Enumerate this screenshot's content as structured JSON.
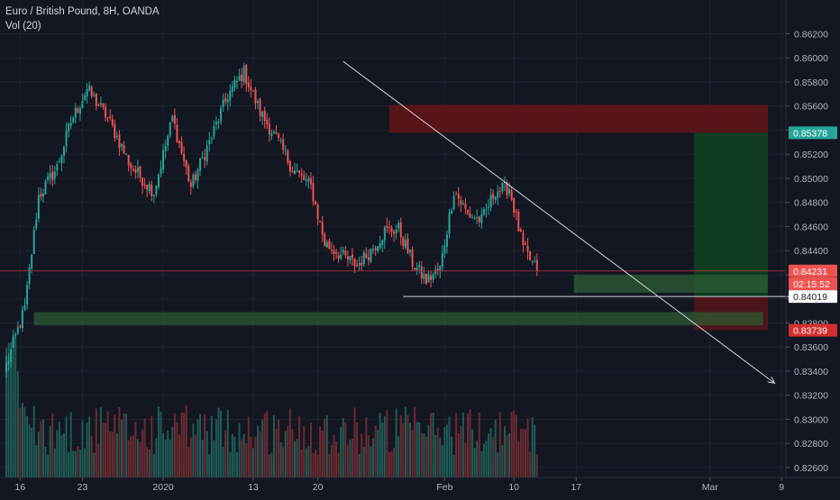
{
  "header": {
    "title": "Euro / British Pound, 8H, OANDA",
    "indicator": "Vol (20)"
  },
  "colors": {
    "background": "#131722",
    "up": "#26a69a",
    "down": "#ef5350",
    "grid": "#1e222d",
    "axis_text": "#b2b5be",
    "stop_zone": "#5b1419",
    "target_zone": "#0f3d22",
    "support_zone": "#2e5e35",
    "trend_line": "#d1d4dc",
    "price_line": "#8f2e33"
  },
  "chart_data": {
    "type": "candlestick",
    "symbol": "EURGBP",
    "interval": "8H",
    "x_tick_labels": [
      "16",
      "23",
      "2020",
      "13",
      "20",
      "Feb",
      "10",
      "17",
      "Mar",
      "9"
    ],
    "y_tick_labels": [
      "0.86200",
      "0.86000",
      "0.85800",
      "0.85600",
      "0.85400",
      "0.85200",
      "0.85000",
      "0.84800",
      "0.84600",
      "0.84400",
      "0.84200",
      "0.84000",
      "0.83800",
      "0.83600",
      "0.83400",
      "0.83200",
      "0.83000",
      "0.82800",
      "0.82600"
    ],
    "ylim": [
      0.8257,
      0.8633
    ],
    "price_badges": [
      {
        "label": "0.85378",
        "value": 0.85378,
        "color": "#26a69a",
        "text_color": "#ffffff"
      },
      {
        "label": "0.84231",
        "value": 0.84231,
        "color": "#ef5350",
        "text_color": "#ffffff"
      },
      {
        "label": "02:15:52",
        "value": 0.84125,
        "color": "#ef5350",
        "text_color": "#ffffff"
      },
      {
        "label": "0.84019",
        "value": 0.84019,
        "color": "#ffffff",
        "text_color": "#131722"
      },
      {
        "label": "0.83739",
        "value": 0.83739,
        "color": "#d32f2f",
        "text_color": "#ffffff"
      }
    ],
    "last_price": 0.84231,
    "ohlc_key_points": [
      {
        "bar": 0,
        "price": 0.8345
      },
      {
        "bar": 8,
        "price": 0.8392
      },
      {
        "bar": 14,
        "price": 0.8485
      },
      {
        "bar": 22,
        "price": 0.8509
      },
      {
        "bar": 28,
        "price": 0.8547
      },
      {
        "bar": 35,
        "price": 0.8574
      },
      {
        "bar": 44,
        "price": 0.855
      },
      {
        "bar": 54,
        "price": 0.851
      },
      {
        "bar": 64,
        "price": 0.8489
      },
      {
        "bar": 72,
        "price": 0.855
      },
      {
        "bar": 80,
        "price": 0.8493
      },
      {
        "bar": 88,
        "price": 0.853
      },
      {
        "bar": 96,
        "price": 0.8569
      },
      {
        "bar": 103,
        "price": 0.8588
      },
      {
        "bar": 110,
        "price": 0.8555
      },
      {
        "bar": 118,
        "price": 0.853
      },
      {
        "bar": 124,
        "price": 0.8508
      },
      {
        "bar": 132,
        "price": 0.8493
      },
      {
        "bar": 138,
        "price": 0.8446
      },
      {
        "bar": 146,
        "price": 0.8435
      },
      {
        "bar": 152,
        "price": 0.8428
      },
      {
        "bar": 158,
        "price": 0.844
      },
      {
        "bar": 164,
        "price": 0.8456
      },
      {
        "bar": 170,
        "price": 0.8458
      },
      {
        "bar": 176,
        "price": 0.843
      },
      {
        "bar": 182,
        "price": 0.8415
      },
      {
        "bar": 188,
        "price": 0.8425
      },
      {
        "bar": 194,
        "price": 0.849
      },
      {
        "bar": 200,
        "price": 0.847
      },
      {
        "bar": 206,
        "price": 0.8465
      },
      {
        "bar": 212,
        "price": 0.849
      },
      {
        "bar": 218,
        "price": 0.8492
      },
      {
        "bar": 224,
        "price": 0.8442
      },
      {
        "bar": 230,
        "price": 0.8423
      }
    ],
    "zones": [
      {
        "name": "stop-loss-zone",
        "from_bar": 166,
        "to_bar": 376,
        "low": 0.85378,
        "high": 0.8561
      },
      {
        "name": "take-profit-zone",
        "from_bar": 298,
        "to_bar": 420,
        "low": 0.84019,
        "high": 0.85378
      },
      {
        "name": "risk-zone",
        "from_bar": 298,
        "to_bar": 420,
        "low": 0.83739,
        "high": 0.84019
      },
      {
        "name": "support-zone-upper",
        "from_bar": 246,
        "to_bar": 330,
        "low": 0.8405,
        "high": 0.842
      },
      {
        "name": "support-zone-lower",
        "from_bar": 12,
        "to_bar": 328,
        "low": 0.8378,
        "high": 0.8389
      }
    ],
    "lines": [
      {
        "name": "trend-line",
        "from": {
          "bar": 146,
          "price": 0.8597
        },
        "to": {
          "bar": 333,
          "price": 0.833
        },
        "arrow": true
      },
      {
        "name": "horizontal-arrow",
        "from": {
          "bar": 172,
          "price": 0.84019
        },
        "to": {
          "bar": 355,
          "price": 0.84019
        },
        "arrow": true
      }
    ]
  }
}
